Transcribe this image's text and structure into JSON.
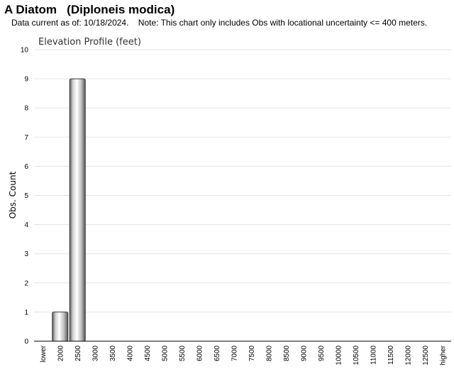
{
  "header": {
    "title": "A Diatom   (Diploneis modica)",
    "note": "Data current as of: 10/18/2024.    Note: This chart only includes Obs with locational uncertainty <= 400 meters."
  },
  "chart_data": {
    "type": "bar",
    "title": "Elevation Profile (feet)",
    "xlabel": "",
    "ylabel": "Obs. Count",
    "ylim": [
      0,
      10
    ],
    "yticks": [
      0,
      1,
      2,
      3,
      4,
      5,
      6,
      7,
      8,
      9,
      10
    ],
    "grid": true,
    "categories": [
      "lower",
      "2000",
      "2500",
      "3000",
      "3500",
      "4000",
      "4500",
      "5000",
      "5500",
      "6000",
      "6500",
      "7000",
      "7500",
      "8000",
      "8500",
      "9000",
      "9500",
      "10000",
      "10500",
      "11000",
      "11500",
      "12000",
      "12500",
      "higher"
    ],
    "values": [
      0,
      1,
      9,
      0,
      0,
      0,
      0,
      0,
      0,
      0,
      0,
      0,
      0,
      0,
      0,
      0,
      0,
      0,
      0,
      0,
      0,
      0,
      0,
      0
    ]
  }
}
